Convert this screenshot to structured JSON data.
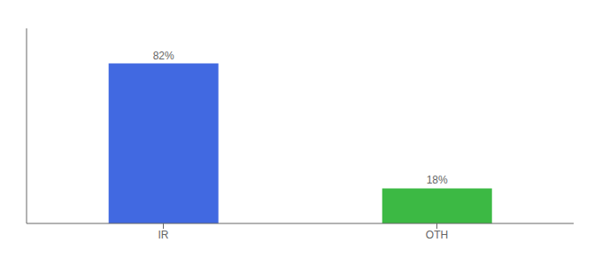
{
  "chart_data": {
    "type": "bar",
    "categories": [
      "IR",
      "OTH"
    ],
    "values": [
      82,
      18
    ],
    "value_labels": [
      "82%",
      "18%"
    ],
    "colors": [
      "#4169e1",
      "#3cb944"
    ],
    "ylim": [
      0,
      100
    ],
    "data_labels": true,
    "tick_labels": "x",
    "grid": false
  }
}
